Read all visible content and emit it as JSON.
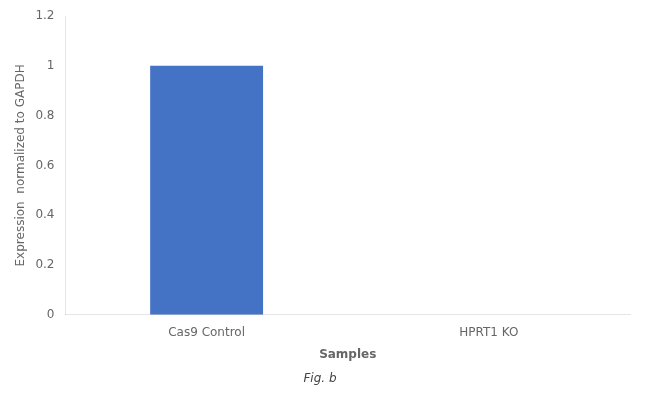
{
  "chart_data": {
    "type": "bar",
    "categories": [
      "Cas9 Control",
      "HPRT1 KO"
    ],
    "values": [
      1.0,
      0.0
    ],
    "color": "#4472c4",
    "xlabel": "Samples",
    "ylabel": "Expression  normalized to GAPDH",
    "ylim": [
      0,
      1.2
    ],
    "yticks": [
      0,
      0.2,
      0.4,
      0.6,
      0.8,
      1,
      1.2
    ],
    "grid": false,
    "annotation": "Fig. b"
  }
}
